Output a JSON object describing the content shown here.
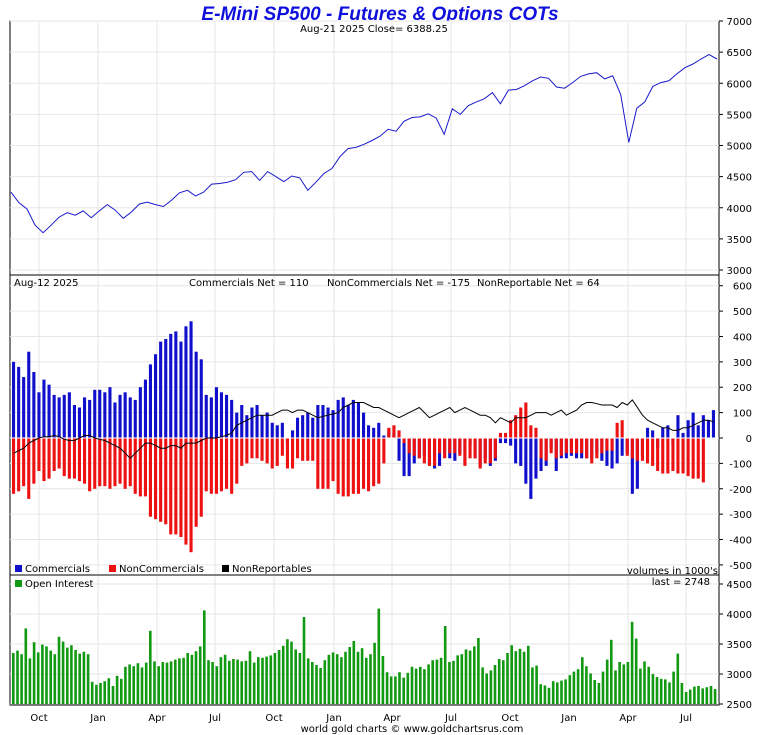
{
  "header": {
    "title": "E-Mini SP500 - Futures & Options COTs",
    "price_info": "Aug-21  2025    Close= 6388.25"
  },
  "cot_panel": {
    "date": "Aug-12  2025",
    "commercials_net": "Commercials Net = 110",
    "noncommercials_net": "NonCommercials Net = -175",
    "nonreportable_net": "NonReportable Net = 64",
    "volumes_note": "volumes in 1000's",
    "last_note": "last = 2748"
  },
  "legend": {
    "commercials": "Commercials",
    "noncommercials": "NonCommercials",
    "nonreportables": "NonReportables",
    "open_interest": "Open Interest"
  },
  "footer": "world gold charts © www.goldchartsrus.com",
  "colors": {
    "title": "#1010dd",
    "price_line": "#1a1acc",
    "commercials": "#1010cc",
    "noncommercials": "#ee1111",
    "nonreportables": "#000000",
    "open_interest": "#119911",
    "grid": "#e6e6e6"
  },
  "chart_data": [
    {
      "type": "line",
      "title": "E-Mini SP500 - Futures & Options COTs",
      "series": [
        {
          "name": "",
          "values": [
            4250,
            4080,
            3980,
            3720,
            3600,
            3720,
            3850,
            3920,
            3880,
            3950,
            3840,
            3950,
            4050,
            3960,
            3830,
            3930,
            4060,
            4090,
            4050,
            4020,
            4120,
            4240,
            4280,
            4190,
            4250,
            4380,
            4390,
            4410,
            4450,
            4570,
            4580,
            4440,
            4580,
            4500,
            4420,
            4510,
            4480,
            4280,
            4410,
            4550,
            4630,
            4820,
            4950,
            4970,
            5020,
            5080,
            5150,
            5260,
            5230,
            5390,
            5450,
            5460,
            5510,
            5440,
            5180,
            5590,
            5500,
            5640,
            5700,
            5750,
            5850,
            5670,
            5890,
            5900,
            5960,
            6040,
            6100,
            6080,
            5940,
            5920,
            6010,
            6110,
            6150,
            6170,
            6070,
            6120,
            5820,
            5050,
            5600,
            5700,
            5950,
            6010,
            6040,
            6150,
            6250,
            6310,
            6390,
            6460,
            6390
          ]
        }
      ],
      "x_axis_labels": [
        "Oct",
        "Jan",
        "Apr",
        "Jul",
        "Oct",
        "Jan",
        "Apr",
        "Jul",
        "Oct",
        "Jan",
        "Apr",
        "Jul"
      ],
      "y_ticks": [
        3000,
        3500,
        4000,
        4500,
        5000,
        5500,
        6000,
        6500,
        7000
      ],
      "ylim": [
        2900,
        7000
      ],
      "grid": true
    },
    {
      "type": "bar",
      "y_ticks": [
        -500,
        -400,
        -300,
        -200,
        -100,
        0,
        100,
        200,
        300,
        400,
        500,
        600
      ],
      "ylim": [
        -560,
        620
      ],
      "grid": true,
      "series": [
        {
          "name": "Commercials",
          "values": [
            300,
            280,
            240,
            340,
            260,
            180,
            230,
            210,
            170,
            160,
            170,
            180,
            130,
            120,
            160,
            150,
            190,
            190,
            180,
            200,
            140,
            170,
            180,
            160,
            150,
            200,
            230,
            290,
            330,
            380,
            390,
            410,
            420,
            380,
            440,
            460,
            340,
            310,
            170,
            160,
            200,
            180,
            170,
            150,
            100,
            130,
            90,
            120,
            130,
            90,
            100,
            60,
            50,
            60,
            -30,
            30,
            80,
            90,
            100,
            80,
            130,
            130,
            120,
            110,
            150,
            160,
            130,
            150,
            140,
            100,
            50,
            40,
            60,
            10,
            30,
            20,
            -90,
            -150,
            -150,
            -100,
            -80,
            -70,
            -100,
            -120,
            -110,
            -60,
            -80,
            -90,
            -60,
            -100,
            -30,
            -80,
            -110,
            -80,
            -110,
            -90,
            -20,
            -20,
            -30,
            -100,
            -110,
            -180,
            -240,
            -160,
            -130,
            -110,
            -40,
            -130,
            -80,
            -80,
            -70,
            -80,
            -80,
            -80,
            -80,
            -60,
            -90,
            -110,
            -120,
            -100,
            -70,
            -60,
            -220,
            -200,
            -70,
            40,
            30,
            -40,
            40,
            50,
            -30,
            90,
            20,
            70,
            100,
            50,
            90,
            70,
            110
          ]
        },
        {
          "name": "NonCommercials",
          "values": [
            -220,
            -210,
            -190,
            -240,
            -180,
            -130,
            -170,
            -160,
            -130,
            -120,
            -150,
            -160,
            -160,
            -170,
            -180,
            -210,
            -200,
            -190,
            -190,
            -200,
            -190,
            -180,
            -200,
            -190,
            -220,
            -230,
            -230,
            -310,
            -320,
            -330,
            -340,
            -380,
            -380,
            -390,
            -420,
            -450,
            -350,
            -310,
            -210,
            -220,
            -220,
            -210,
            -200,
            -220,
            -180,
            -110,
            -100,
            -80,
            -80,
            -90,
            -100,
            -120,
            -110,
            -70,
            -120,
            -120,
            -80,
            -90,
            -90,
            -90,
            -200,
            -200,
            -200,
            -170,
            -220,
            -230,
            -230,
            -220,
            -220,
            -200,
            -210,
            -190,
            -180,
            -100,
            40,
            50,
            30,
            -20,
            -60,
            -70,
            -80,
            -100,
            -110,
            -110,
            -60,
            -80,
            -60,
            -60,
            -70,
            -110,
            -80,
            -80,
            -120,
            -100,
            -100,
            -80,
            20,
            20,
            70,
            90,
            120,
            140,
            50,
            40,
            -80,
            -90,
            -60,
            -80,
            -70,
            -60,
            -60,
            -60,
            -60,
            -80,
            -100,
            -80,
            -60,
            -50,
            -50,
            60,
            70,
            -70,
            -80,
            -90,
            -90,
            -100,
            -110,
            -130,
            -140,
            -140,
            -130,
            -140,
            -140,
            -150,
            -160,
            -160,
            -175
          ]
        },
        {
          "name": "NonReportables",
          "values": [
            -60,
            -50,
            -40,
            -20,
            -10,
            0,
            5,
            5,
            10,
            5,
            -5,
            -10,
            -10,
            0,
            10,
            10,
            0,
            -5,
            -10,
            -20,
            -30,
            -40,
            -60,
            -80,
            -60,
            -40,
            -20,
            -20,
            -30,
            -40,
            -40,
            -30,
            -30,
            -40,
            -20,
            -20,
            -20,
            -10,
            0,
            0,
            0,
            5,
            10,
            20,
            50,
            60,
            70,
            80,
            90,
            90,
            90,
            90,
            100,
            110,
            110,
            100,
            110,
            110,
            100,
            90,
            80,
            85,
            90,
            95,
            100,
            120,
            130,
            140,
            140,
            140,
            130,
            120,
            120,
            110,
            100,
            90,
            80,
            90,
            100,
            110,
            120,
            100,
            80,
            90,
            100,
            110,
            120,
            100,
            110,
            120,
            110,
            100,
            90,
            90,
            80,
            60,
            80,
            70,
            60,
            80,
            80,
            80,
            90,
            100,
            100,
            100,
            90,
            100,
            110,
            90,
            100,
            110,
            130,
            140,
            140,
            135,
            130,
            130,
            130,
            120,
            140,
            130,
            150,
            120,
            90,
            70,
            60,
            50,
            40,
            40,
            30,
            30,
            40,
            40,
            50,
            60,
            70,
            70,
            64
          ]
        }
      ]
    },
    {
      "type": "bar",
      "series": [
        {
          "name": "Open Interest",
          "values": [
            3350,
            3390,
            3330,
            3760,
            3260,
            3530,
            3360,
            3490,
            3460,
            3390,
            3330,
            3620,
            3540,
            3440,
            3480,
            3400,
            3340,
            3370,
            3330,
            2870,
            2820,
            2850,
            2880,
            2930,
            2800,
            2970,
            2920,
            3120,
            3160,
            3130,
            3180,
            3110,
            3190,
            3720,
            3210,
            3130,
            3200,
            3190,
            3210,
            3240,
            3260,
            3270,
            3350,
            3320,
            3380,
            3460,
            4060,
            3230,
            3200,
            3130,
            3280,
            3320,
            3220,
            3250,
            3240,
            3210,
            3220,
            3380,
            3190,
            3280,
            3270,
            3290,
            3310,
            3350,
            3400,
            3470,
            3580,
            3540,
            3410,
            3350,
            3950,
            3260,
            3200,
            3150,
            3100,
            3230,
            3320,
            3360,
            3330,
            3280,
            3370,
            3450,
            3550,
            3370,
            3430,
            3270,
            3330,
            3520,
            4090,
            3300,
            3030,
            2960,
            2960,
            3030,
            2940,
            3020,
            3120,
            3090,
            3120,
            3080,
            3160,
            3230,
            3240,
            3270,
            3800,
            3200,
            3220,
            3310,
            3330,
            3410,
            3390,
            3460,
            3600,
            3110,
            3010,
            3060,
            3150,
            3250,
            3230,
            3350,
            3480,
            3380,
            3420,
            3370,
            3470,
            3110,
            3140,
            2830,
            2810,
            2770,
            2880,
            2860,
            2890,
            2910,
            2980,
            3040,
            3080,
            3280,
            3130,
            3010,
            2900,
            2850,
            3040,
            3240,
            3570,
            3060,
            3200,
            3160,
            3200,
            3870,
            3590,
            3090,
            3210,
            3120,
            3000,
            2950,
            2920,
            2910,
            2860,
            3040,
            3340,
            2850,
            2700,
            2740,
            2790,
            2800,
            2760,
            2780,
            2800,
            2748
          ]
        }
      ],
      "y_ticks": [
        2500,
        3000,
        3500,
        4000,
        4500
      ],
      "ylim": [
        2500,
        4700
      ],
      "grid": true
    }
  ]
}
